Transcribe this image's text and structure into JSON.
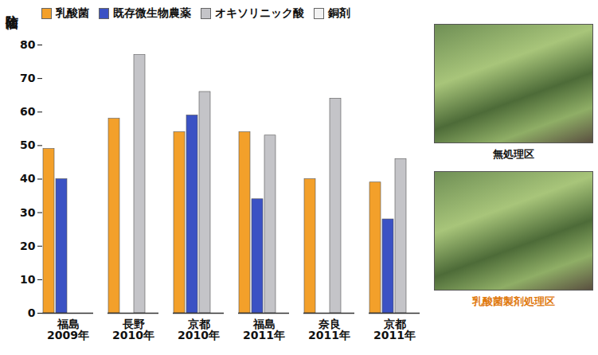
{
  "chart_data": {
    "type": "bar",
    "y_label": "防除価",
    "categories": [
      "福島",
      "長野",
      "京都",
      "福島",
      "奈良",
      "京都"
    ],
    "years": [
      "2009年",
      "2010年",
      "2010年",
      "2011年",
      "2011年",
      "2011年"
    ],
    "series": [
      {
        "name": "乳酸菌",
        "color": "#f3a02a",
        "values": [
          49,
          58,
          54,
          54,
          40,
          39
        ]
      },
      {
        "name": "既存微生物農薬",
        "color": "#3b52c4",
        "values": [
          40,
          null,
          59,
          34,
          null,
          28
        ]
      },
      {
        "name": "オキソリニック酸",
        "color": "#c4c4c8",
        "values": [
          null,
          77,
          66,
          53,
          64,
          46
        ]
      },
      {
        "name": "銅剤",
        "color": "#f2f2f2",
        "values": [
          null,
          null,
          null,
          null,
          null,
          null
        ]
      }
    ],
    "ylim": [
      0,
      80
    ],
    "yticks": [
      0,
      10,
      20,
      30,
      40,
      50,
      60,
      70,
      80
    ],
    "grid": false,
    "legend": "top"
  },
  "photos": [
    {
      "caption": "無処理区"
    },
    {
      "caption": "乳酸菌製剤処理区"
    }
  ]
}
